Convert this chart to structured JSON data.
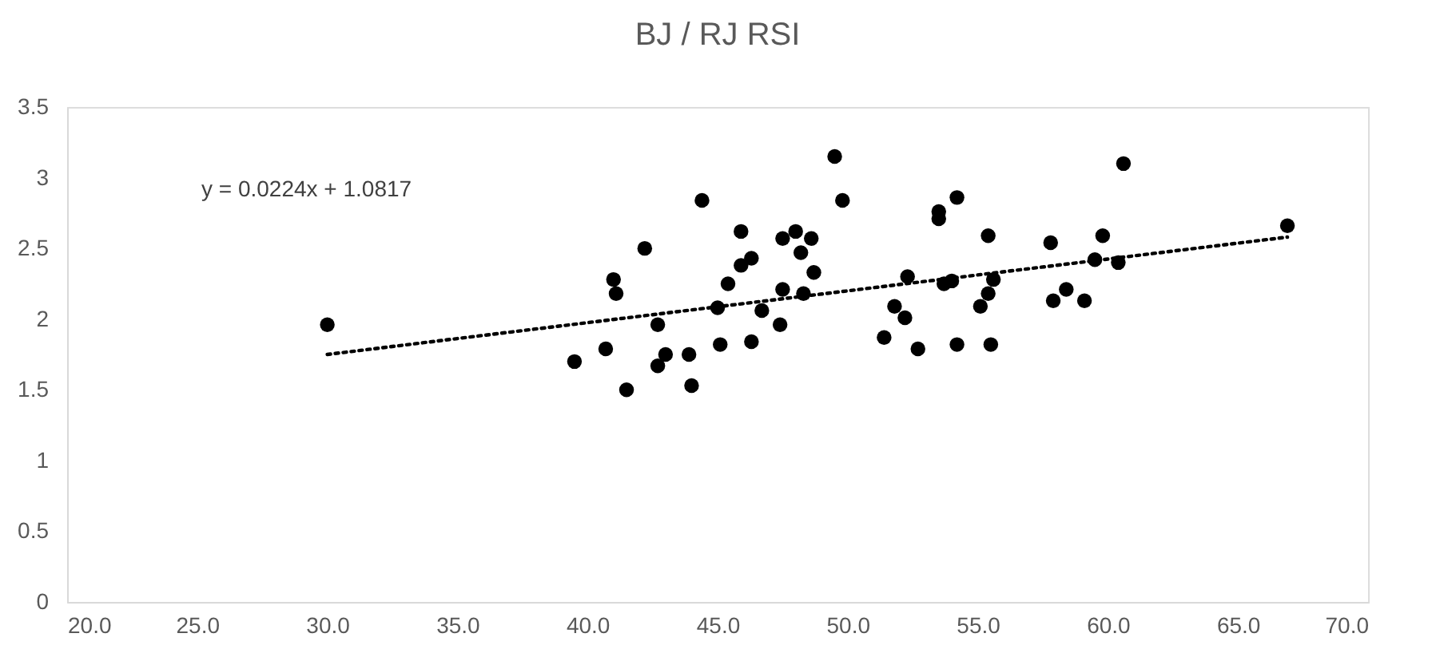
{
  "chart_data": {
    "type": "scatter",
    "title": "BJ / RJ RSI",
    "annotations": [
      "y = 0.0224x + 1.0817"
    ],
    "xlim": [
      20,
      70
    ],
    "xticks": [
      {
        "value": 20,
        "label": "20.0"
      },
      {
        "value": 25,
        "label": "25.0"
      },
      {
        "value": 30,
        "label": "30.0"
      },
      {
        "value": 35,
        "label": "35.0"
      },
      {
        "value": 40,
        "label": "40.0"
      },
      {
        "value": 45,
        "label": "45.0"
      },
      {
        "value": 50,
        "label": "50.0"
      },
      {
        "value": 55,
        "label": "55.0"
      },
      {
        "value": 60,
        "label": "60.0"
      },
      {
        "value": 65,
        "label": "65.0"
      },
      {
        "value": 70,
        "label": "70.0"
      }
    ],
    "ylim": [
      0,
      3.5
    ],
    "yticks": [
      0,
      0.5,
      1,
      1.5,
      2,
      2.5,
      3,
      3.5
    ],
    "grid": false,
    "series": [
      {
        "color": "#000000",
        "marker": "circle",
        "x": [
          30.0,
          49.5,
          49.8,
          44.4,
          45.9,
          42.2,
          47.5,
          48.0,
          48.6,
          48.2,
          46.3,
          45.9,
          41.0,
          41.1,
          45.4,
          48.7,
          47.5,
          48.3,
          45.0,
          46.7,
          42.7,
          47.4,
          39.5,
          40.7,
          43.0,
          42.7,
          43.9,
          45.1,
          46.3,
          41.5,
          44.0,
          53.5,
          53.5,
          54.2,
          52.3,
          53.7,
          54.0,
          51.8,
          52.2,
          51.4,
          52.7,
          54.2,
          60.6,
          55.4,
          57.8,
          59.8,
          66.9,
          59.5,
          60.4,
          55.6,
          55.4,
          55.1,
          58.4,
          57.9,
          59.1,
          55.5
        ],
        "values": [
          1.96,
          3.15,
          2.84,
          2.84,
          2.62,
          2.5,
          2.57,
          2.62,
          2.57,
          2.47,
          2.43,
          2.38,
          2.28,
          2.18,
          2.25,
          2.33,
          2.21,
          2.18,
          2.08,
          2.06,
          1.96,
          1.96,
          1.7,
          1.79,
          1.75,
          1.67,
          1.75,
          1.82,
          1.84,
          1.5,
          1.53,
          2.76,
          2.71,
          2.86,
          2.3,
          2.25,
          2.27,
          2.09,
          2.01,
          1.87,
          1.79,
          1.82,
          3.1,
          2.59,
          2.54,
          2.59,
          2.66,
          2.42,
          2.4,
          2.28,
          2.18,
          2.09,
          2.21,
          2.13,
          2.13,
          1.82
        ]
      },
      {
        "type": "line",
        "color": "#000000",
        "line_style": "dotted",
        "x": [
          30.0,
          66.9
        ],
        "values": [
          1.75,
          2.58
        ]
      }
    ]
  }
}
